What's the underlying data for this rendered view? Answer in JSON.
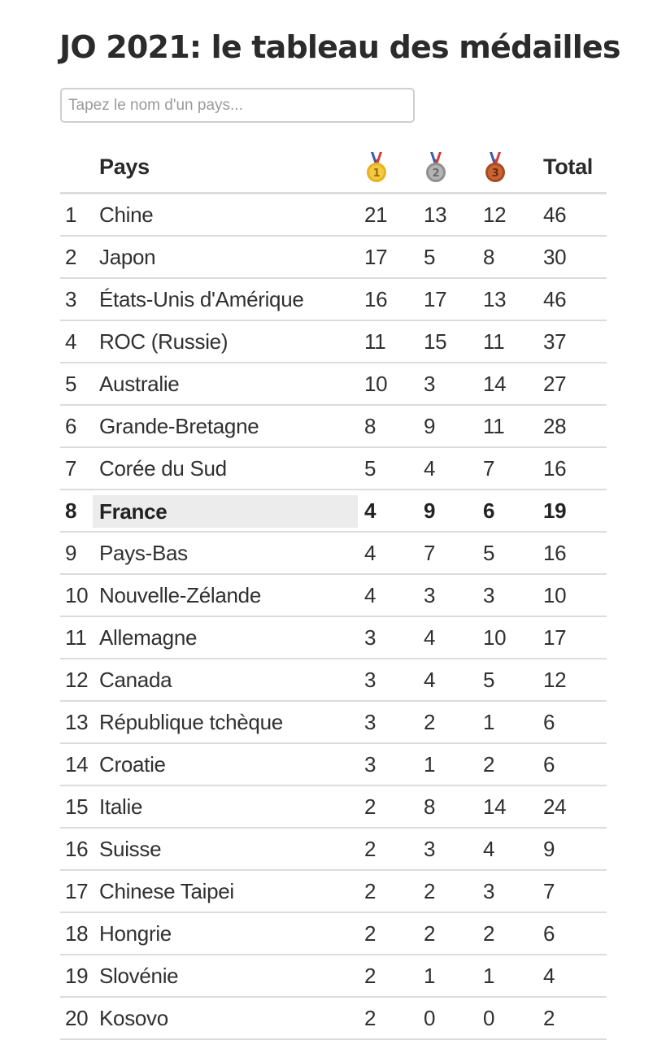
{
  "page": {
    "title": "JO 2021: le tableau des médailles"
  },
  "search": {
    "placeholder": "Tapez le nom d'un pays...",
    "value": ""
  },
  "table": {
    "headers": {
      "country": "Pays",
      "gold_icon": "gold-medal-icon",
      "silver_icon": "silver-medal-icon",
      "bronze_icon": "bronze-medal-icon",
      "total": "Total"
    },
    "medal_colors": {
      "gold": "#e8b320",
      "silver": "#9a9a9a",
      "bronze": "#b8542b",
      "ribbon_red": "#d43c3c",
      "ribbon_blue": "#3a5aa8"
    },
    "highlight_color": "#ececec",
    "highlighted_country": "France",
    "rows": [
      {
        "rank": "1",
        "country": "Chine",
        "gold": "21",
        "silver": "13",
        "bronze": "12",
        "total": "46"
      },
      {
        "rank": "2",
        "country": "Japon",
        "gold": "17",
        "silver": "5",
        "bronze": "8",
        "total": "30"
      },
      {
        "rank": "3",
        "country": "États-Unis d'Amérique",
        "gold": "16",
        "silver": "17",
        "bronze": "13",
        "total": "46"
      },
      {
        "rank": "4",
        "country": "ROC (Russie)",
        "gold": "11",
        "silver": "15",
        "bronze": "11",
        "total": "37"
      },
      {
        "rank": "5",
        "country": "Australie",
        "gold": "10",
        "silver": "3",
        "bronze": "14",
        "total": "27"
      },
      {
        "rank": "6",
        "country": "Grande-Bretagne",
        "gold": "8",
        "silver": "9",
        "bronze": "11",
        "total": "28"
      },
      {
        "rank": "7",
        "country": "Corée du Sud",
        "gold": "5",
        "silver": "4",
        "bronze": "7",
        "total": "16"
      },
      {
        "rank": "8",
        "country": "France",
        "gold": "4",
        "silver": "9",
        "bronze": "6",
        "total": "19"
      },
      {
        "rank": "9",
        "country": "Pays-Bas",
        "gold": "4",
        "silver": "7",
        "bronze": "5",
        "total": "16"
      },
      {
        "rank": "10",
        "country": "Nouvelle-Zélande",
        "gold": "4",
        "silver": "3",
        "bronze": "3",
        "total": "10"
      },
      {
        "rank": "11",
        "country": "Allemagne",
        "gold": "3",
        "silver": "4",
        "bronze": "10",
        "total": "17"
      },
      {
        "rank": "12",
        "country": "Canada",
        "gold": "3",
        "silver": "4",
        "bronze": "5",
        "total": "12"
      },
      {
        "rank": "13",
        "country": "République tchèque",
        "gold": "3",
        "silver": "2",
        "bronze": "1",
        "total": "6"
      },
      {
        "rank": "14",
        "country": "Croatie",
        "gold": "3",
        "silver": "1",
        "bronze": "2",
        "total": "6"
      },
      {
        "rank": "15",
        "country": "Italie",
        "gold": "2",
        "silver": "8",
        "bronze": "14",
        "total": "24"
      },
      {
        "rank": "16",
        "country": "Suisse",
        "gold": "2",
        "silver": "3",
        "bronze": "4",
        "total": "9"
      },
      {
        "rank": "17",
        "country": "Chinese Taipei",
        "gold": "2",
        "silver": "2",
        "bronze": "3",
        "total": "7"
      },
      {
        "rank": "18",
        "country": "Hongrie",
        "gold": "2",
        "silver": "2",
        "bronze": "2",
        "total": "6"
      },
      {
        "rank": "19",
        "country": "Slovénie",
        "gold": "2",
        "silver": "1",
        "bronze": "1",
        "total": "4"
      },
      {
        "rank": "20",
        "country": "Kosovo",
        "gold": "2",
        "silver": "0",
        "bronze": "0",
        "total": "2"
      }
    ]
  }
}
